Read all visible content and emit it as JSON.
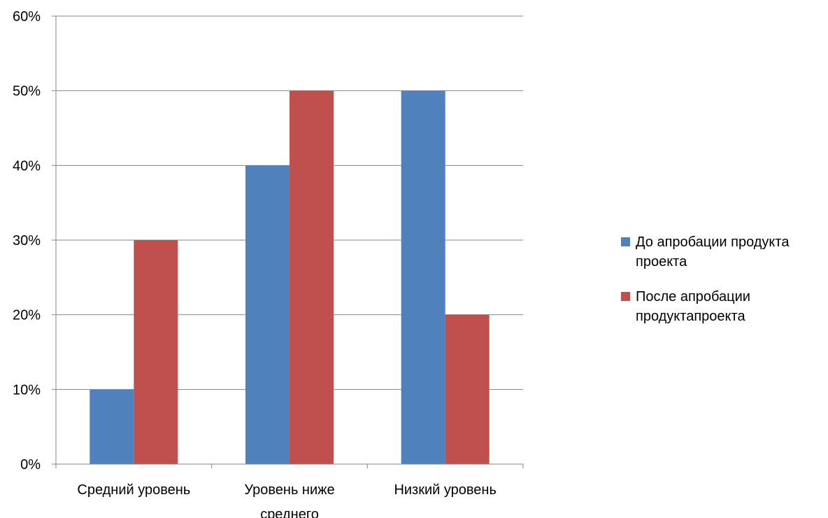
{
  "chart_data": {
    "type": "bar",
    "categories": [
      "Средний уровень",
      "Уровень ниже среднего",
      "Низкий уровень"
    ],
    "category_lines": [
      [
        "Средний уровень"
      ],
      [
        "Уровень ниже",
        "среднего"
      ],
      [
        "Низкий уровень"
      ]
    ],
    "series": [
      {
        "name": "До апробации продукта проекта",
        "values": [
          10,
          40,
          50
        ],
        "color": "#4f81bd"
      },
      {
        "name": "После апробации продуктапроекта",
        "values": [
          30,
          50,
          20
        ],
        "color": "#c0504d"
      }
    ],
    "yticks": [
      "0%",
      "10%",
      "20%",
      "30%",
      "40%",
      "50%",
      "60%"
    ],
    "ylim": [
      0,
      60
    ],
    "grid": true,
    "legend_position": "right"
  }
}
